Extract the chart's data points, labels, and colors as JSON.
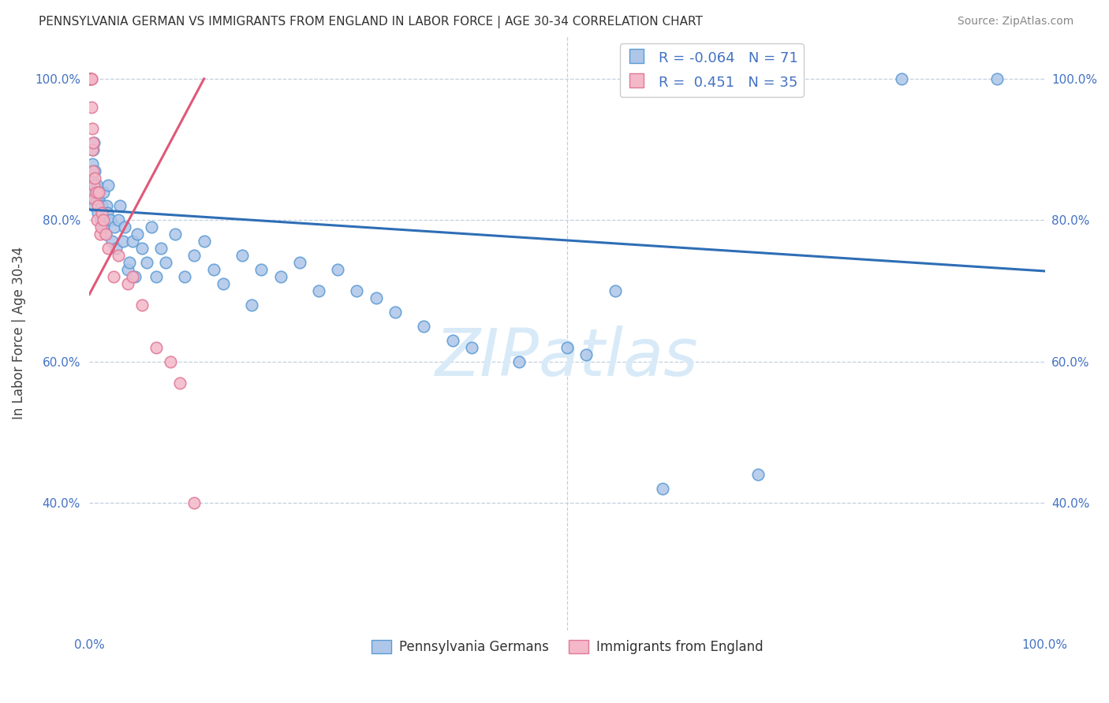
{
  "title": "PENNSYLVANIA GERMAN VS IMMIGRANTS FROM ENGLAND IN LABOR FORCE | AGE 30-34 CORRELATION CHART",
  "source": "Source: ZipAtlas.com",
  "ylabel": "In Labor Force | Age 30-34",
  "xlim": [
    0.0,
    1.0
  ],
  "ylim": [
    0.22,
    1.06
  ],
  "yticks": [
    0.4,
    0.6,
    0.8,
    1.0
  ],
  "ytick_labels": [
    "40.0%",
    "60.0%",
    "80.0%",
    "100.0%"
  ],
  "xticks": [
    0.0,
    0.2,
    0.4,
    0.6,
    0.8,
    1.0
  ],
  "xtick_labels": [
    "0.0%",
    "",
    "",
    "",
    "",
    "100.0%"
  ],
  "blue_R": -0.064,
  "blue_N": 71,
  "pink_R": 0.451,
  "pink_N": 35,
  "blue_color": "#aec6e8",
  "blue_edge": "#5b9bd5",
  "pink_color": "#f4b8c8",
  "pink_edge": "#e07898",
  "blue_line_color": "#2e6eb5",
  "pink_line_color": "#e05878",
  "watermark_color": "#d8eaf8",
  "blue_line_x": [
    0.0,
    1.0
  ],
  "blue_line_y": [
    0.815,
    0.728
  ],
  "pink_line_x": [
    0.0,
    0.12
  ],
  "pink_line_y": [
    0.695,
    1.0
  ],
  "blue_x": [
    0.0,
    0.0,
    0.0,
    0.001,
    0.001,
    0.002,
    0.002,
    0.003,
    0.004,
    0.005,
    0.005,
    0.006,
    0.006,
    0.007,
    0.008,
    0.009,
    0.01,
    0.012,
    0.013,
    0.015,
    0.015,
    0.017,
    0.018,
    0.019,
    0.02,
    0.022,
    0.024,
    0.026,
    0.028,
    0.03,
    0.032,
    0.035,
    0.037,
    0.04,
    0.042,
    0.045,
    0.048,
    0.05,
    0.055,
    0.06,
    0.065,
    0.07,
    0.075,
    0.08,
    0.09,
    0.1,
    0.11,
    0.12,
    0.13,
    0.14,
    0.16,
    0.17,
    0.18,
    0.2,
    0.22,
    0.24,
    0.26,
    0.28,
    0.3,
    0.32,
    0.35,
    0.38,
    0.4,
    0.45,
    0.5,
    0.52,
    0.55,
    0.6,
    0.7,
    0.85,
    0.95
  ],
  "blue_y": [
    0.83,
    0.84,
    0.85,
    0.86,
    0.87,
    0.84,
    0.86,
    0.88,
    0.9,
    0.91,
    0.82,
    0.85,
    0.87,
    0.83,
    0.85,
    0.81,
    0.83,
    0.8,
    0.82,
    0.84,
    0.79,
    0.78,
    0.82,
    0.81,
    0.85,
    0.8,
    0.77,
    0.79,
    0.76,
    0.8,
    0.82,
    0.77,
    0.79,
    0.73,
    0.74,
    0.77,
    0.72,
    0.78,
    0.76,
    0.74,
    0.79,
    0.72,
    0.76,
    0.74,
    0.78,
    0.72,
    0.75,
    0.77,
    0.73,
    0.71,
    0.75,
    0.68,
    0.73,
    0.72,
    0.74,
    0.7,
    0.73,
    0.7,
    0.69,
    0.67,
    0.65,
    0.63,
    0.62,
    0.6,
    0.62,
    0.61,
    0.7,
    0.42,
    0.44,
    1.0,
    1.0
  ],
  "pink_x": [
    0.0,
    0.0,
    0.0,
    0.001,
    0.001,
    0.001,
    0.002,
    0.002,
    0.002,
    0.003,
    0.003,
    0.004,
    0.004,
    0.005,
    0.005,
    0.006,
    0.007,
    0.008,
    0.009,
    0.01,
    0.011,
    0.012,
    0.013,
    0.015,
    0.017,
    0.02,
    0.025,
    0.03,
    0.04,
    0.045,
    0.055,
    0.07,
    0.085,
    0.095,
    0.11
  ],
  "pink_y": [
    1.0,
    1.0,
    1.0,
    1.0,
    1.0,
    1.0,
    1.0,
    1.0,
    0.96,
    0.93,
    0.9,
    0.91,
    0.87,
    0.85,
    0.83,
    0.86,
    0.84,
    0.8,
    0.82,
    0.84,
    0.78,
    0.79,
    0.81,
    0.8,
    0.78,
    0.76,
    0.72,
    0.75,
    0.71,
    0.72,
    0.68,
    0.62,
    0.6,
    0.57,
    0.4
  ]
}
